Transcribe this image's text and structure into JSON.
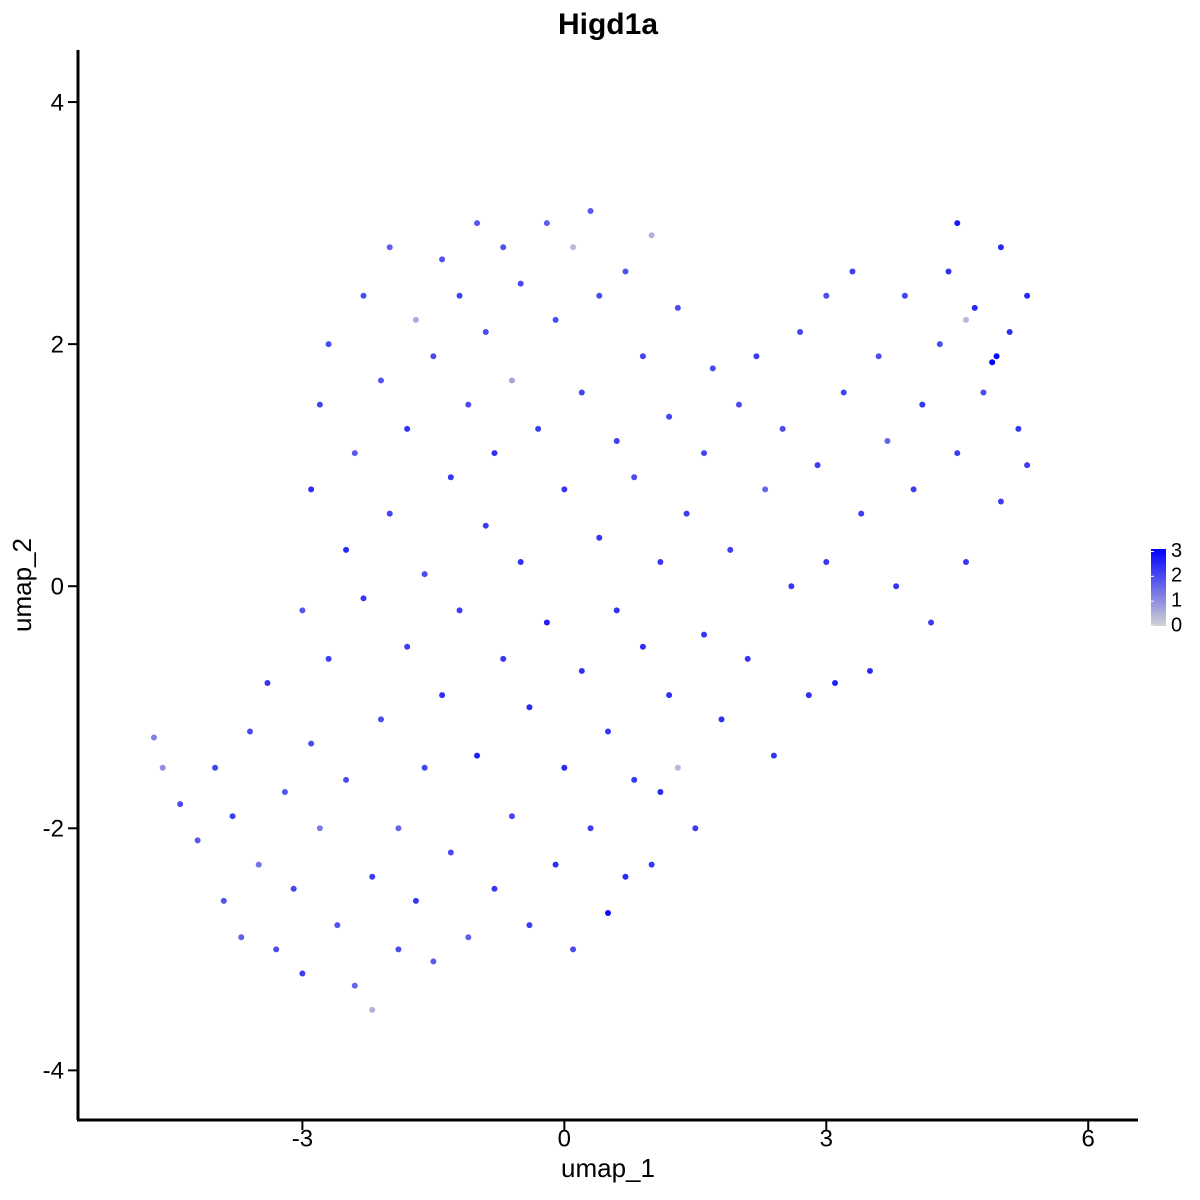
{
  "chart_data": {
    "type": "scatter",
    "title": "Higd1a",
    "x_label": "umap_1",
    "y_label": "umap_2",
    "xlim": [
      -5.57,
      6.57
    ],
    "ylim": [
      -4.41,
      4.43
    ],
    "xticks": [
      -3,
      0,
      3,
      6
    ],
    "yticks": [
      -4,
      -2,
      0,
      2,
      4
    ],
    "color_scale": [
      "#d3d3d3",
      "#0000ff"
    ],
    "clim": [
      0,
      3.1
    ],
    "legend_ticks": [
      0,
      1,
      2,
      3
    ],
    "x": [
      -4.7,
      -4.6,
      -4.4,
      -4.2,
      -4.0,
      -3.9,
      -3.7,
      -3.8,
      -3.6,
      -3.5,
      -3.4,
      -3.3,
      -3.2,
      -3.1,
      -3.0,
      -3.0,
      -2.9,
      -2.9,
      -2.8,
      -2.8,
      -2.7,
      -2.7,
      -2.6,
      -2.5,
      -2.5,
      -2.4,
      -2.4,
      -2.3,
      -2.3,
      -2.2,
      -2.2,
      -2.1,
      -2.1,
      -2.0,
      -2.0,
      -1.9,
      -1.9,
      -1.8,
      -1.8,
      -1.7,
      -1.7,
      -1.6,
      -1.6,
      -1.5,
      -1.5,
      -1.4,
      -1.4,
      -1.3,
      -1.3,
      -1.2,
      -1.2,
      -1.1,
      -1.1,
      -1.0,
      -1.0,
      -0.9,
      -0.9,
      -0.8,
      -0.8,
      -0.7,
      -0.7,
      -0.6,
      -0.6,
      -0.5,
      -0.5,
      -0.4,
      -0.4,
      -0.3,
      -0.2,
      -0.2,
      -0.1,
      -0.1,
      0.0,
      0.0,
      0.1,
      0.1,
      0.2,
      0.2,
      0.3,
      0.3,
      0.4,
      0.4,
      0.5,
      0.5,
      0.6,
      0.6,
      0.7,
      0.7,
      0.8,
      0.8,
      0.9,
      0.9,
      1.0,
      1.0,
      1.1,
      1.1,
      1.2,
      1.2,
      1.3,
      1.3,
      1.4,
      1.5,
      1.6,
      1.6,
      1.7,
      1.8,
      1.9,
      2.0,
      2.1,
      2.2,
      2.3,
      2.4,
      2.5,
      2.6,
      2.7,
      2.8,
      2.9,
      3.0,
      3.0,
      3.1,
      3.2,
      3.3,
      3.4,
      3.5,
      3.6,
      3.7,
      3.8,
      3.9,
      4.0,
      4.1,
      4.2,
      4.3,
      4.4,
      4.5,
      4.5,
      4.6,
      4.7,
      4.8,
      4.9,
      5.0,
      5.0,
      5.1,
      5.2,
      5.3,
      5.3,
      4.6,
      4.95
    ],
    "y": [
      -1.25,
      -1.5,
      -1.8,
      -2.1,
      -1.5,
      -2.6,
      -2.9,
      -1.9,
      -1.2,
      -2.3,
      -0.8,
      -3.0,
      -1.7,
      -2.5,
      -0.2,
      -3.2,
      0.8,
      -1.3,
      1.5,
      -2.0,
      2.0,
      -0.6,
      -2.8,
      0.3,
      -1.6,
      1.1,
      -3.3,
      2.4,
      -0.1,
      -2.4,
      -3.5,
      1.7,
      -1.1,
      0.6,
      2.8,
      -2.0,
      -3.0,
      1.3,
      -0.5,
      2.2,
      -2.6,
      0.1,
      -1.5,
      1.9,
      -3.1,
      2.7,
      -0.9,
      0.9,
      -2.2,
      2.4,
      -0.2,
      1.5,
      -2.9,
      3.0,
      -1.4,
      0.5,
      2.1,
      -2.5,
      1.1,
      2.8,
      -0.6,
      -1.9,
      1.7,
      0.2,
      2.5,
      -2.8,
      -1.0,
      1.3,
      3.0,
      -0.3,
      2.2,
      -2.3,
      0.8,
      -1.5,
      2.8,
      -3.0,
      1.6,
      -0.7,
      3.1,
      -2.0,
      0.4,
      2.4,
      -2.7,
      -1.2,
      1.2,
      -0.2,
      2.6,
      -2.4,
      0.9,
      -1.6,
      1.9,
      -0.5,
      -2.3,
      2.9,
      0.2,
      -1.7,
      1.4,
      -0.9,
      2.3,
      -1.5,
      0.6,
      -2.0,
      1.1,
      -0.4,
      1.8,
      -1.1,
      0.3,
      1.5,
      -0.6,
      1.9,
      0.8,
      -1.4,
      1.3,
      0.0,
      2.1,
      -0.9,
      1.0,
      2.4,
      0.2,
      -0.8,
      1.6,
      2.6,
      0.6,
      -0.7,
      1.9,
      1.2,
      0.0,
      2.4,
      0.8,
      1.5,
      -0.3,
      2.0,
      2.6,
      1.1,
      3.0,
      0.2,
      2.3,
      1.6,
      1.85,
      2.8,
      0.7,
      2.1,
      1.3,
      2.4,
      1.0,
      2.2,
      1.9
    ],
    "values": [
      1.2,
      1,
      2,
      1.8,
      2.1,
      1.9,
      1.7,
      2.2,
      2,
      1.4,
      2.3,
      2,
      1.9,
      2.1,
      1.8,
      2.2,
      2.4,
      2,
      2.1,
      1.3,
      2,
      2.2,
      1.9,
      2.5,
      2,
      1.8,
      1.6,
      2,
      2.3,
      2.2,
      0.5,
      1.9,
      2,
      2.1,
      1.7,
      1.6,
      2,
      2.4,
      2.2,
      0.6,
      2.3,
      2,
      2.1,
      2,
      1.8,
      1.9,
      2.4,
      2.3,
      2,
      2.1,
      2.2,
      2,
      1.7,
      1.8,
      2.6,
      2.2,
      2,
      2.3,
      2.4,
      1.9,
      2.3,
      2.1,
      0.7,
      2.4,
      2,
      2.2,
      2.5,
      2.2,
      1.7,
      2.6,
      2,
      2.4,
      2.3,
      2.5,
      0.4,
      2,
      2.1,
      2.4,
      1.8,
      2.2,
      2.3,
      2,
      2.9,
      2.3,
      2.2,
      2.4,
      1.9,
      2.5,
      2,
      2.3,
      2.1,
      2.4,
      2.3,
      0.5,
      2.3,
      2.5,
      2.1,
      2.4,
      2,
      0.4,
      2.2,
      2.2,
      2.1,
      2.3,
      2,
      2.4,
      2.2,
      2,
      2.3,
      2.2,
      1.6,
      2.3,
      2,
      2.3,
      2.1,
      2.4,
      2.2,
      2,
      2.3,
      2.6,
      2.1,
      2.2,
      2.2,
      2.5,
      2,
      1.6,
      2.3,
      2.1,
      2.2,
      2.3,
      2.2,
      2,
      2.4,
      2.2,
      2.7,
      2.3,
      2.5,
      2,
      3.1,
      2.5,
      2.2,
      2.4,
      2.3,
      2.5,
      2.2,
      0.4,
      3.0
    ]
  }
}
